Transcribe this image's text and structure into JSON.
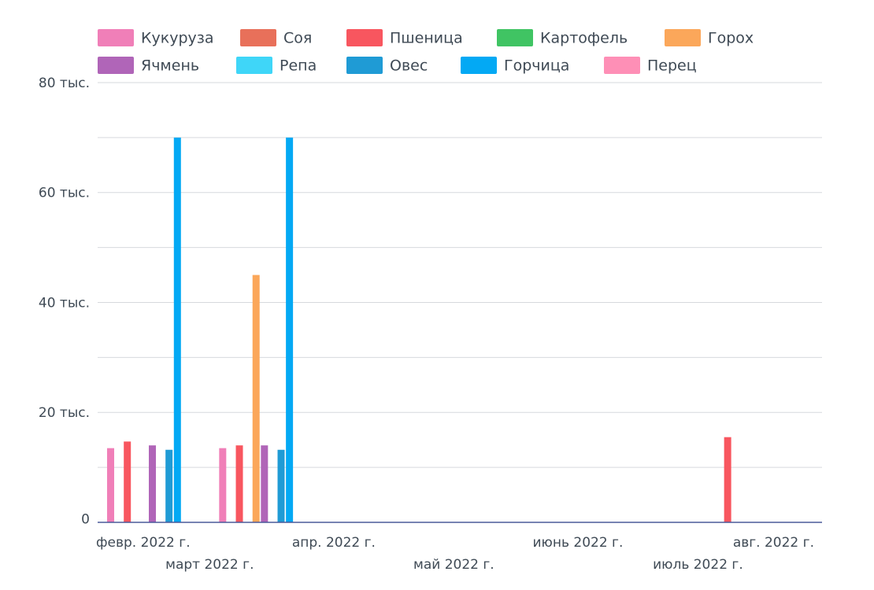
{
  "chart_data": {
    "type": "bar",
    "x_type": "date-month",
    "categories": [
      "февр. 2022 г.",
      "март 2022 г.",
      "апр. 2022 г.",
      "май 2022 г.",
      "июнь 2022 г.",
      "июль 2022 г.",
      "авг. 2022 г."
    ],
    "category_dates": [
      "2022-02-01",
      "2022-03-01",
      "2022-04-01",
      "2022-05-01",
      "2022-06-01",
      "2022-07-01",
      "2022-08-01"
    ],
    "x_tick_labels": [
      "февр. 2022 г.",
      "март 2022 г.",
      "апр. 2022 г.",
      "май 2022 г.",
      "июнь 2022 г.",
      "июль 2022 г.",
      "авг. 2022 г."
    ],
    "y_tick_labels": [
      "0",
      "20 тыс.",
      "40 тыс.",
      "60 тыс.",
      "80 тыс."
    ],
    "y_ticks": [
      0,
      20000,
      40000,
      60000,
      80000
    ],
    "ylim": [
      0,
      80000
    ],
    "grid": true,
    "legend_position": "top",
    "series": [
      {
        "name": "Кукуруза",
        "color": "#f07fb8",
        "values": [
          13500,
          13500,
          null,
          null,
          null,
          null,
          null
        ]
      },
      {
        "name": "Соя",
        "color": "#e8705a",
        "values": [
          null,
          null,
          null,
          null,
          null,
          null,
          null
        ]
      },
      {
        "name": "Пшеница",
        "color": "#f8565f",
        "values": [
          14700,
          14000,
          null,
          null,
          null,
          15500,
          null
        ]
      },
      {
        "name": "Картофель",
        "color": "#40c463",
        "values": [
          null,
          null,
          null,
          null,
          null,
          null,
          null
        ]
      },
      {
        "name": "Горох",
        "color": "#fba75a",
        "values": [
          null,
          45000,
          null,
          null,
          null,
          null,
          null
        ]
      },
      {
        "name": "Ячмень",
        "color": "#b065b8",
        "values": [
          14000,
          14000,
          null,
          null,
          null,
          null,
          null
        ]
      },
      {
        "name": "Репа",
        "color": "#3fd6f8",
        "values": [
          null,
          null,
          null,
          null,
          null,
          null,
          null
        ]
      },
      {
        "name": "Овес",
        "color": "#1f9bd5",
        "values": [
          13200,
          13200,
          null,
          null,
          null,
          null,
          null
        ]
      },
      {
        "name": "Горчица",
        "color": "#03a9f4",
        "values": [
          70000,
          70000,
          null,
          null,
          null,
          null,
          null
        ]
      },
      {
        "name": "Перец",
        "color": "#fe8fb6",
        "values": [
          null,
          null,
          null,
          null,
          null,
          null,
          null
        ]
      }
    ]
  }
}
